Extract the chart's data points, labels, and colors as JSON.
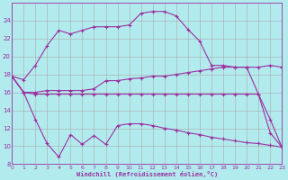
{
  "xlabel": "Windchill (Refroidissement éolien,°C)",
  "background_color": "#b2ebee",
  "grid_color": "#aaaaaa",
  "line_color": "#9b30a0",
  "xlim": [
    0,
    23
  ],
  "ylim": [
    8,
    26
  ],
  "xticks": [
    0,
    1,
    2,
    3,
    4,
    5,
    6,
    7,
    8,
    9,
    10,
    11,
    12,
    13,
    14,
    15,
    16,
    17,
    18,
    19,
    20,
    21,
    22,
    23
  ],
  "yticks": [
    8,
    10,
    12,
    14,
    16,
    18,
    20,
    22,
    24
  ],
  "series": [
    {
      "x": [
        0,
        1,
        2,
        3,
        4,
        5,
        6,
        7,
        8,
        9,
        10,
        11,
        12,
        13,
        14,
        15,
        16,
        17,
        18,
        19,
        20,
        21,
        22,
        23
      ],
      "y": [
        17.8,
        17.4,
        19.0,
        21.2,
        22.9,
        22.5,
        22.9,
        23.3,
        23.3,
        23.3,
        23.5,
        24.8,
        25.0,
        25.0,
        24.5,
        23.0,
        21.7,
        19.0,
        19.0,
        18.8,
        18.8,
        18.8,
        19.0,
        18.8
      ]
    },
    {
      "x": [
        0,
        1,
        2,
        3,
        4,
        5,
        6,
        7,
        8,
        9,
        10,
        11,
        12,
        13,
        14,
        15,
        16,
        17,
        18,
        19,
        20,
        21,
        22,
        23
      ],
      "y": [
        17.8,
        16.0,
        16.0,
        16.2,
        16.2,
        16.2,
        16.2,
        16.4,
        17.3,
        17.3,
        17.5,
        17.6,
        17.8,
        17.8,
        18.0,
        18.2,
        18.4,
        18.6,
        18.8,
        18.8,
        18.8,
        15.8,
        13.0,
        9.9
      ]
    },
    {
      "x": [
        0,
        1,
        2,
        3,
        4,
        5,
        6,
        7,
        8,
        9,
        10,
        11,
        12,
        13,
        14,
        15,
        16,
        17,
        18,
        19,
        20,
        21,
        22,
        23
      ],
      "y": [
        17.8,
        16.0,
        15.8,
        15.8,
        15.8,
        15.8,
        15.8,
        15.8,
        15.8,
        15.8,
        15.8,
        15.8,
        15.8,
        15.8,
        15.8,
        15.8,
        15.8,
        15.8,
        15.8,
        15.8,
        15.8,
        15.8,
        11.5,
        9.9
      ]
    },
    {
      "x": [
        0,
        1,
        2,
        3,
        4,
        5,
        6,
        7,
        8,
        9,
        10,
        11,
        12,
        13,
        14,
        15,
        16,
        17,
        18,
        19,
        20,
        21,
        22,
        23
      ],
      "y": [
        17.8,
        16.0,
        13.0,
        10.3,
        8.8,
        11.3,
        10.2,
        11.2,
        10.2,
        12.3,
        12.5,
        12.5,
        12.3,
        12.0,
        11.8,
        11.5,
        11.3,
        11.0,
        10.8,
        10.6,
        10.4,
        10.3,
        10.1,
        9.9
      ]
    }
  ]
}
